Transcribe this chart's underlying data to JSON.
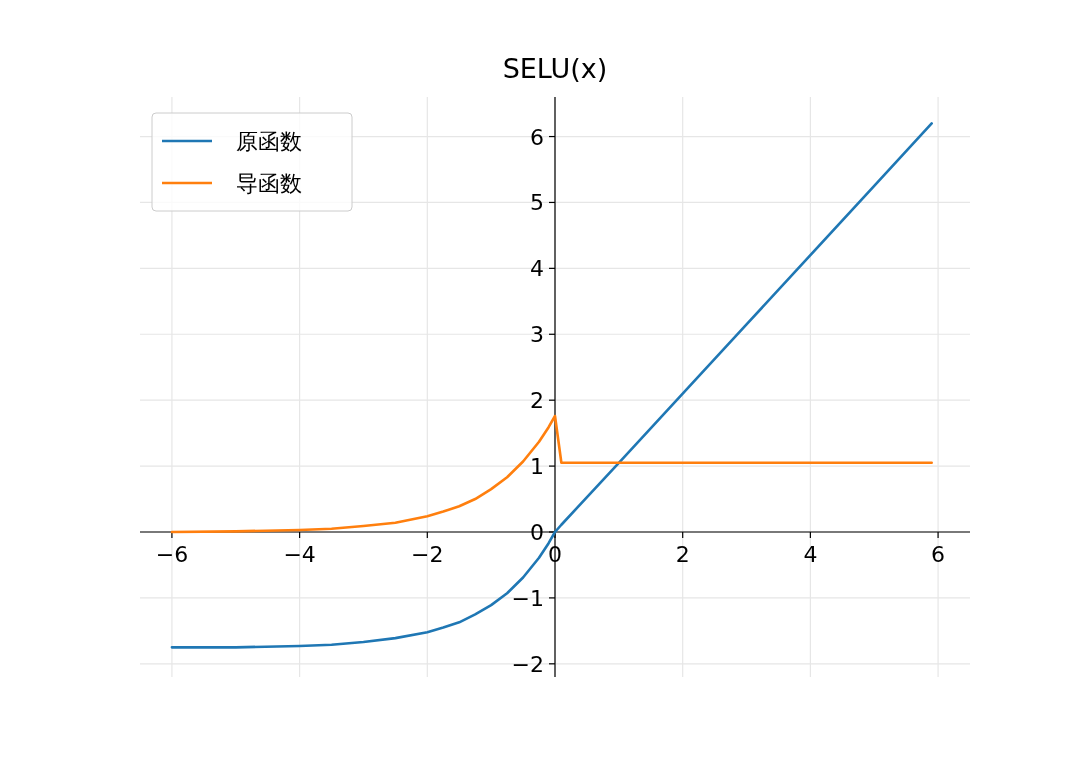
{
  "chart_data": {
    "type": "line",
    "title": "SELU(x)",
    "xlim": [
      -6.5,
      6.5
    ],
    "ylim": [
      -2.2,
      6.6
    ],
    "xticks": [
      -6,
      -4,
      -2,
      0,
      2,
      4,
      6
    ],
    "yticks": [
      -2,
      -1,
      0,
      1,
      2,
      3,
      4,
      5,
      6
    ],
    "grid": true,
    "legend": "top left",
    "line_style": "solid",
    "marker": "none",
    "x": [
      -6,
      -5,
      -4,
      -3.5,
      -3,
      -2.5,
      -2,
      -1.75,
      -1.5,
      -1.25,
      -1,
      -0.75,
      -0.5,
      -0.25,
      -0.1,
      0,
      0.1,
      1,
      2,
      3,
      4,
      5,
      5.9
    ],
    "series": [
      {
        "name": "原函数",
        "color": "#1f77b4",
        "values": [
          -1.75,
          -1.75,
          -1.73,
          -1.71,
          -1.67,
          -1.61,
          -1.52,
          -1.45,
          -1.37,
          -1.25,
          -1.11,
          -0.93,
          -0.69,
          -0.39,
          -0.17,
          0,
          0.11,
          1.05,
          2.1,
          3.15,
          4.2,
          5.25,
          6.2
        ]
      },
      {
        "name": "导函数",
        "color": "#ff7f0e",
        "values": [
          0,
          0.01,
          0.03,
          0.05,
          0.09,
          0.14,
          0.24,
          0.31,
          0.39,
          0.5,
          0.65,
          0.83,
          1.07,
          1.37,
          1.59,
          1.76,
          1.05,
          1.05,
          1.05,
          1.05,
          1.05,
          1.05,
          1.05
        ]
      }
    ]
  }
}
